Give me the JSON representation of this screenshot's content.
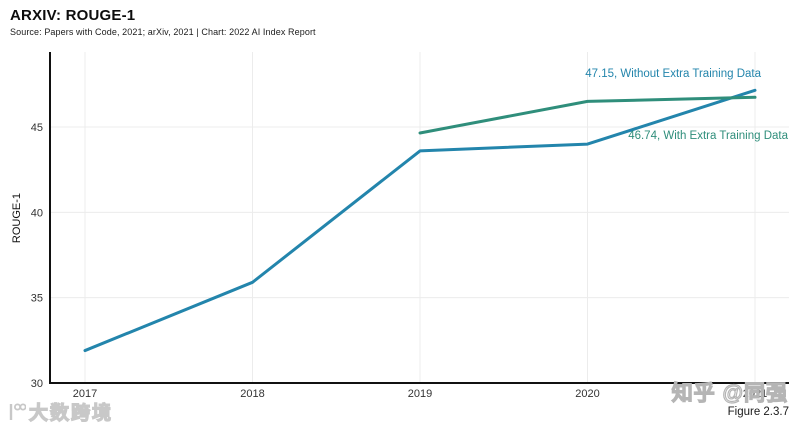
{
  "header": {
    "title": "ARXIV: ROUGE-1",
    "subtitle": "Source: Papers with Code, 2021; arXiv, 2021 | Chart: 2022 AI Index Report"
  },
  "chart_data": {
    "type": "line",
    "title": "ARXIV: ROUGE-1",
    "xlabel": "",
    "ylabel": "ROUGE-1",
    "x": [
      2017,
      2018,
      2019,
      2020,
      2021
    ],
    "x_tick_labels": [
      "2017",
      "2018",
      "2019",
      "2020",
      "2021"
    ],
    "yticks": [
      30,
      35,
      40,
      45
    ],
    "ylim": [
      30,
      48
    ],
    "grid": true,
    "legend_position": "none",
    "series": [
      {
        "name": "Without Extra Training Data",
        "color": "#2385AC",
        "x": [
          2017,
          2018,
          2019,
          2020,
          2021
        ],
        "values": [
          31.9,
          35.9,
          43.6,
          44.0,
          47.15
        ]
      },
      {
        "name": "With Extra Training Data",
        "color": "#2F8E7B",
        "x": [
          2019,
          2020,
          2021
        ],
        "values": [
          44.65,
          46.5,
          46.74
        ]
      }
    ],
    "annotations": [
      {
        "text": "47.15, Without Extra Training Data",
        "color": "#2385AC"
      },
      {
        "text": "46.74, With Extra Training Data",
        "color": "#2F8E7B"
      }
    ]
  },
  "figure_label": "Figure 2.3.7",
  "watermarks": {
    "bottom_left": "大数跨境",
    "zhihu": "知乎 @同强"
  },
  "colors": {
    "axis": "#111111",
    "grid": "#ececec",
    "tick_label": "#333333"
  }
}
